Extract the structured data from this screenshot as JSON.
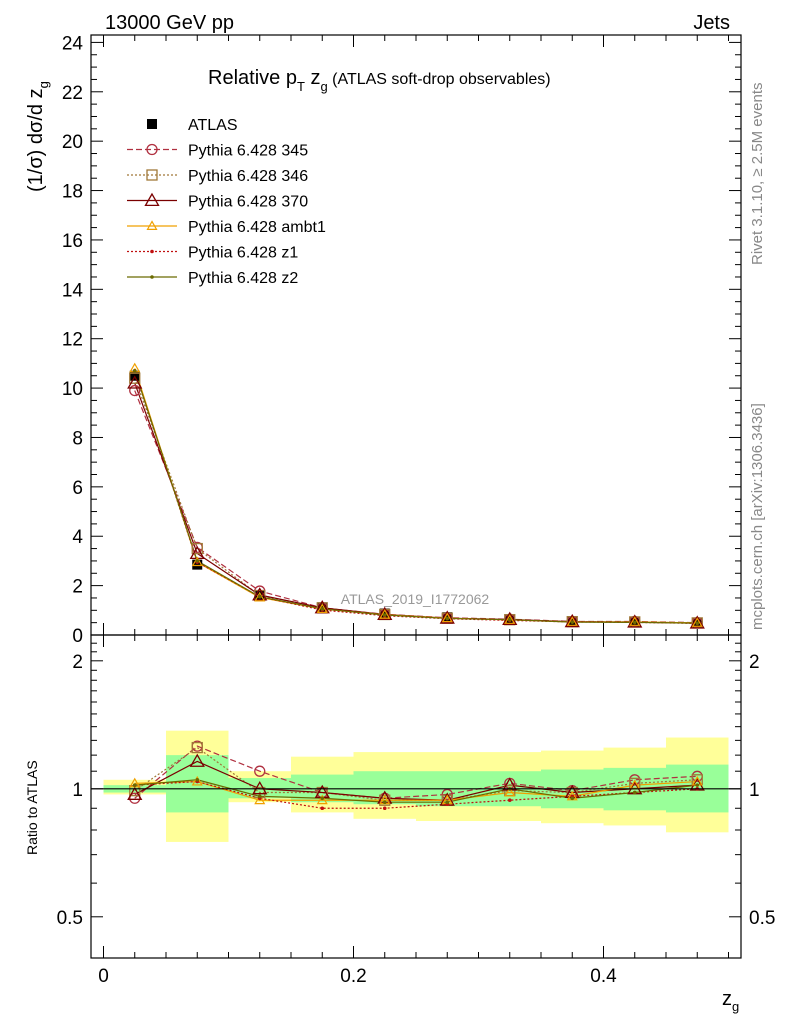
{
  "header": {
    "energy_label": "13000 GeV pp",
    "process_label": "Jets"
  },
  "side_labels": {
    "rivet": "Rivet 3.1.10, ≥ 2.5M events",
    "mcplots": "mcplots.cern.ch [arXiv:1306.3436]"
  },
  "chart_data": [
    {
      "type": "line",
      "title_main": "Relative p",
      "title_sub1": "T",
      "title_mid": " z",
      "title_sub2": "g",
      "title_tail": " (ATLAS soft-drop observables)",
      "ylabel_main": "(1/σ) dσ/d z",
      "ylabel_sub": "g",
      "watermark": "ATLAS_2019_I1772062",
      "ylim": [
        0,
        24.3
      ],
      "yticks": [
        "0",
        "2",
        "4",
        "6",
        "8",
        "10",
        "12",
        "14",
        "16",
        "18",
        "20",
        "22",
        "24"
      ],
      "x": [
        0.025,
        0.075,
        0.125,
        0.175,
        0.225,
        0.275,
        0.325,
        0.375,
        0.425,
        0.475
      ],
      "series": [
        {
          "name": "ATLAS",
          "color": "#000000",
          "marker": "square-filled",
          "dash": "none",
          "values": [
            10.5,
            2.85,
            1.62,
            1.12,
            0.87,
            0.72,
            0.62,
            0.55,
            0.52,
            0.47
          ]
        },
        {
          "name": "Pythia 6.428 345",
          "color": "#b03040",
          "marker": "circle-open",
          "dash": "6,3",
          "values": [
            9.9,
            3.55,
            1.78,
            1.1,
            0.84,
            0.7,
            0.64,
            0.55,
            0.55,
            0.5
          ]
        },
        {
          "name": "Pythia 6.428 346",
          "color": "#a07838",
          "marker": "square-open",
          "dash": "2,2",
          "values": [
            10.4,
            3.5,
            1.6,
            1.1,
            0.83,
            0.68,
            0.62,
            0.54,
            0.53,
            0.49
          ]
        },
        {
          "name": "Pythia 6.428 370",
          "color": "#7a0000",
          "marker": "triangle-open",
          "dash": "none",
          "values": [
            10.2,
            3.3,
            1.62,
            1.1,
            0.83,
            0.68,
            0.63,
            0.54,
            0.52,
            0.48
          ]
        },
        {
          "name": "Pythia 6.428 ambt1",
          "color": "#f0a000",
          "marker": "triangle-small",
          "dash": "none",
          "values": [
            10.8,
            2.95,
            1.52,
            1.05,
            0.82,
            0.68,
            0.61,
            0.53,
            0.53,
            0.49
          ]
        },
        {
          "name": "Pythia 6.428 z1",
          "color": "#c01010",
          "marker": "dot",
          "dash": "2,2",
          "values": [
            10.7,
            2.95,
            1.55,
            1.01,
            0.78,
            0.66,
            0.59,
            0.53,
            0.51,
            0.47
          ]
        },
        {
          "name": "Pythia 6.428 z2",
          "color": "#6b6b00",
          "marker": "dot",
          "dash": "none",
          "values": [
            10.7,
            3.0,
            1.55,
            1.06,
            0.81,
            0.67,
            0.62,
            0.52,
            0.51,
            0.48
          ]
        }
      ]
    },
    {
      "type": "line",
      "ylabel": "Ratio to ATLAS",
      "xlabel_main": "z",
      "xlabel_sub": "g",
      "ylog": true,
      "ylim": [
        0.4,
        2.3
      ],
      "yticks": [
        "0.5",
        "1",
        "2"
      ],
      "xlim": [
        -0.01,
        0.51
      ],
      "xticks": [
        "0",
        "0.2",
        "0.4"
      ],
      "reference_line": 1,
      "bins": [
        [
          0.0,
          0.05
        ],
        [
          0.05,
          0.1
        ],
        [
          0.1,
          0.15
        ],
        [
          0.15,
          0.2
        ],
        [
          0.2,
          0.25
        ],
        [
          0.25,
          0.3
        ],
        [
          0.3,
          0.35
        ],
        [
          0.35,
          0.4
        ],
        [
          0.4,
          0.45
        ],
        [
          0.45,
          0.5
        ]
      ],
      "band_inner": [
        [
          0.98,
          1.02
        ],
        [
          0.88,
          1.2
        ],
        [
          0.95,
          1.06
        ],
        [
          0.93,
          1.08
        ],
        [
          0.92,
          1.1
        ],
        [
          0.91,
          1.1
        ],
        [
          0.91,
          1.1
        ],
        [
          0.9,
          1.11
        ],
        [
          0.89,
          1.12
        ],
        [
          0.88,
          1.14
        ]
      ],
      "band_outer": [
        [
          0.97,
          1.05
        ],
        [
          0.75,
          1.37
        ],
        [
          0.93,
          1.1
        ],
        [
          0.88,
          1.19
        ],
        [
          0.85,
          1.22
        ],
        [
          0.84,
          1.22
        ],
        [
          0.84,
          1.22
        ],
        [
          0.83,
          1.23
        ],
        [
          0.82,
          1.25
        ],
        [
          0.79,
          1.32
        ]
      ],
      "x": [
        0.025,
        0.075,
        0.125,
        0.175,
        0.225,
        0.275,
        0.325,
        0.375,
        0.425,
        0.475
      ],
      "series": [
        {
          "name": "Pythia 6.428 345",
          "color": "#b03040",
          "marker": "circle-open",
          "dash": "6,3",
          "values": [
            0.95,
            1.26,
            1.1,
            0.98,
            0.95,
            0.97,
            1.03,
            0.99,
            1.05,
            1.07
          ]
        },
        {
          "name": "Pythia 6.428 346",
          "color": "#a07838",
          "marker": "square-open",
          "dash": "2,2",
          "values": [
            0.99,
            1.25,
            0.98,
            0.98,
            0.94,
            0.94,
            0.99,
            0.98,
            1.03,
            1.05
          ]
        },
        {
          "name": "Pythia 6.428 370",
          "color": "#7a0000",
          "marker": "triangle-open",
          "dash": "none",
          "values": [
            0.97,
            1.16,
            1.0,
            0.98,
            0.95,
            0.94,
            1.02,
            0.98,
            1.0,
            1.02
          ]
        },
        {
          "name": "Pythia 6.428 ambt1",
          "color": "#f0a000",
          "marker": "triangle-small",
          "dash": "none",
          "values": [
            1.03,
            1.04,
            0.94,
            0.94,
            0.94,
            0.94,
            0.98,
            0.96,
            1.02,
            1.04
          ]
        },
        {
          "name": "Pythia 6.428 z1",
          "color": "#c01010",
          "marker": "dot",
          "dash": "2,2",
          "values": [
            1.02,
            1.04,
            0.95,
            0.9,
            0.9,
            0.92,
            0.94,
            0.96,
            0.98,
            1.0
          ]
        },
        {
          "name": "Pythia 6.428 z2",
          "color": "#6b6b00",
          "marker": "dot",
          "dash": "none",
          "values": [
            1.02,
            1.05,
            0.96,
            0.95,
            0.93,
            0.93,
            1.0,
            0.95,
            0.98,
            1.02
          ]
        }
      ]
    }
  ]
}
